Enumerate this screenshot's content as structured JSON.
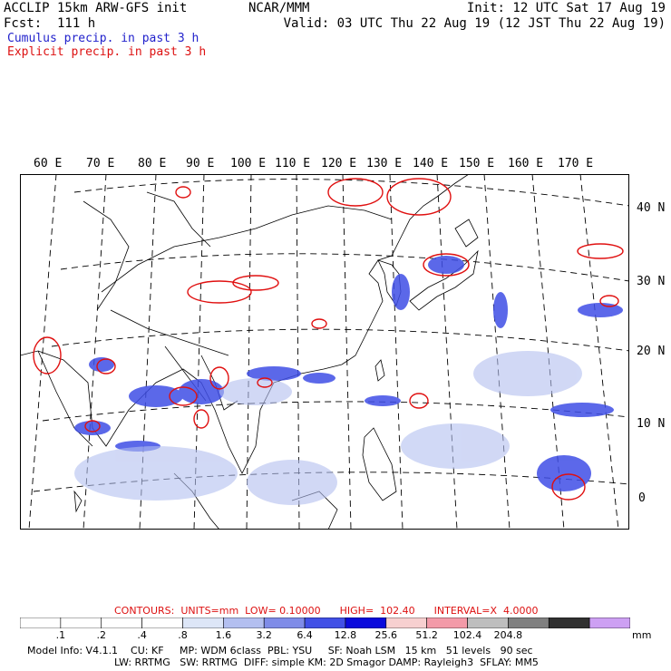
{
  "header": {
    "title_left": "ACCLIP 15km ARW-GFS init",
    "forecast": "Fcst:  111 h",
    "center": "NCAR/MMM",
    "init": "Init: 12 UTC Sat 17 Aug 19",
    "valid": "Valid: 03 UTC Thu 22 Aug 19 (12 JST Thu 22 Aug 19)",
    "legend_cumulus": "Cumulus precip. in past 3 h",
    "legend_explicit": "Explicit precip. in past 3 h"
  },
  "map": {
    "lon_labels": [
      "60 E",
      "70 E",
      "80 E",
      "90 E",
      "100 E",
      "110 E",
      "120 E",
      "130 E",
      "140 E",
      "150 E",
      "160 E",
      "170 E"
    ],
    "lat_labels": [
      "40 N",
      "30 N",
      "20 N",
      "10 N",
      "0"
    ]
  },
  "contours": {
    "label": "CONTOURS:  UNITS=mm  LOW= 0.10000      HIGH=  102.40      INTERVAL=X  4.0000"
  },
  "colorbar": {
    "colors": [
      "#ffffff",
      "#ffffff",
      "#ffffff",
      "#ffffff",
      "#dde6f7",
      "#b3bff0",
      "#7f8ce8",
      "#4150e6",
      "#0a0adc",
      "#f7d0d0",
      "#f39aa8",
      "#bebebe",
      "#808080",
      "#303030",
      "#cda0f3"
    ],
    "ticks": [
      ".1",
      ".2",
      ".4",
      ".8",
      "1.6",
      "3.2",
      "6.4",
      "12.8",
      "25.6",
      "51.2",
      "102.4",
      "204.8"
    ],
    "unit": "mm"
  },
  "footer": {
    "line1": "Model Info: V4.1.1    CU: KF     MP: WDM 6class  PBL: YSU     SF: Noah LSM   15 km   51 levels   90 sec",
    "line2": "LW: RRTMG   SW: RRTMG  DIFF: simple KM: 2D Smagor DAMP: Rayleigh3  SFLAY: MM5"
  }
}
